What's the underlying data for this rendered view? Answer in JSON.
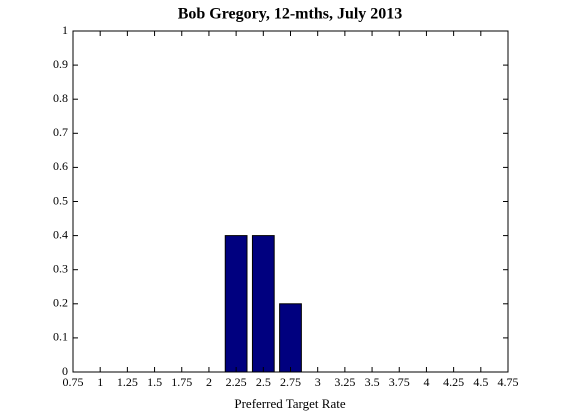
{
  "chart_data": {
    "type": "bar",
    "title": "Bob Gregory, 12-mths, July 2013",
    "x_label": "Preferred Target Rate",
    "x": [
      2.25,
      2.5,
      2.75
    ],
    "values": [
      0.4,
      0.4,
      0.2
    ],
    "color": "#00007f",
    "xlim": [
      0.75,
      4.75
    ],
    "xticks": [
      0.75,
      1,
      1.25,
      1.5,
      1.75,
      2,
      2.25,
      2.5,
      2.75,
      3,
      3.25,
      3.5,
      3.75,
      4,
      4.25,
      4.5,
      4.75
    ],
    "ylim": [
      0,
      1
    ],
    "yticks": [
      0,
      0.1,
      0.2,
      0.3,
      0.4,
      0.5,
      0.6,
      0.7,
      0.8,
      0.9,
      1
    ],
    "grid": false
  }
}
